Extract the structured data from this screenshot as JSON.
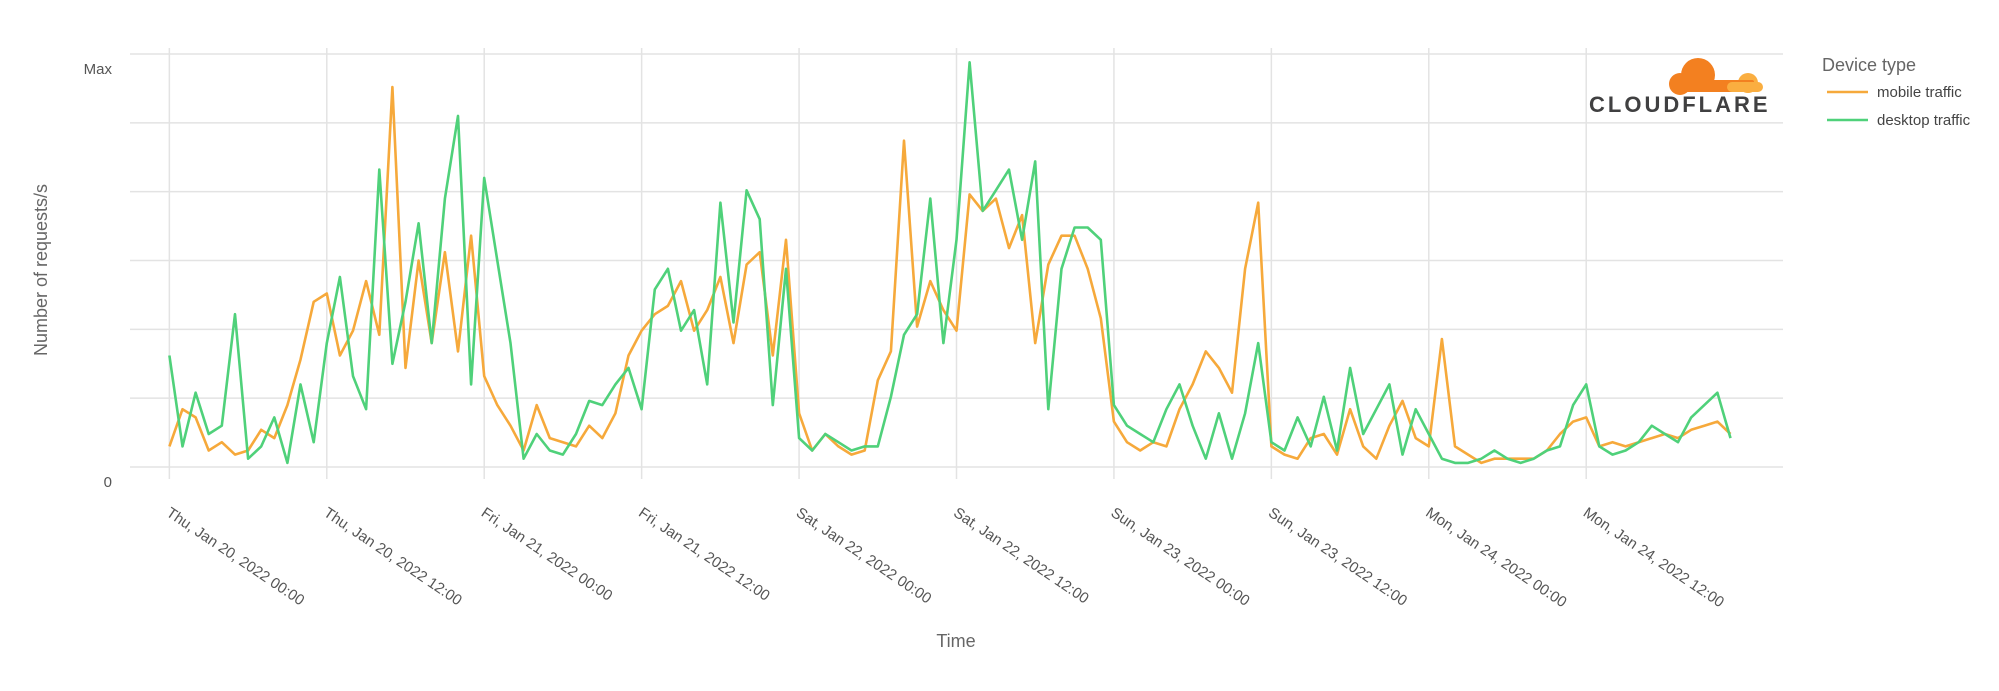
{
  "colors": {
    "mobile": "#f6a93b",
    "desktop": "#4fd17a",
    "grid": "#e3e3e3",
    "logo_orange": "#f38020",
    "logo_light": "#faae40"
  },
  "logo": {
    "text": "CLOUDFLARE",
    "icon": "cloudflare-cloud-icon"
  },
  "chart_data": {
    "type": "line",
    "xlabel": "Time",
    "ylabel": "Number of requests/s",
    "y_tick_labels": [
      "Max",
      "0"
    ],
    "ylim": [
      0,
      1
    ],
    "xlim": [
      "2022-01-19T21:00",
      "2022-01-25T03:00"
    ],
    "x_ticks": [
      {
        "x": "2022-01-20T00:00",
        "label": "Thu, Jan 20, 2022 00:00"
      },
      {
        "x": "2022-01-20T12:00",
        "label": "Thu, Jan 20, 2022 12:00"
      },
      {
        "x": "2022-01-21T00:00",
        "label": "Fri, Jan 21, 2022 00:00"
      },
      {
        "x": "2022-01-21T12:00",
        "label": "Fri, Jan 21, 2022 12:00"
      },
      {
        "x": "2022-01-22T00:00",
        "label": "Sat, Jan 22, 2022 00:00"
      },
      {
        "x": "2022-01-22T12:00",
        "label": "Sat, Jan 22, 2022 12:00"
      },
      {
        "x": "2022-01-23T00:00",
        "label": "Sun, Jan 23, 2022 00:00"
      },
      {
        "x": "2022-01-23T12:00",
        "label": "Sun, Jan 23, 2022 12:00"
      },
      {
        "x": "2022-01-24T00:00",
        "label": "Mon, Jan 24, 2022 00:00"
      },
      {
        "x": "2022-01-24T12:00",
        "label": "Mon, Jan 24, 2022 12:00"
      }
    ],
    "grid": true,
    "legend": {
      "title": "Device type",
      "position": "top-right"
    },
    "series": [
      {
        "name": "mobile traffic",
        "x": [
          "2022-01-20T00:00",
          "2022-01-20T01:00",
          "2022-01-20T02:00",
          "2022-01-20T03:00",
          "2022-01-20T04:00",
          "2022-01-20T05:00",
          "2022-01-20T06:00",
          "2022-01-20T07:00",
          "2022-01-20T08:00",
          "2022-01-20T09:00",
          "2022-01-20T10:00",
          "2022-01-20T11:00",
          "2022-01-20T12:00",
          "2022-01-20T13:00",
          "2022-01-20T14:00",
          "2022-01-20T15:00",
          "2022-01-20T16:00",
          "2022-01-20T17:00",
          "2022-01-20T18:00",
          "2022-01-20T19:00",
          "2022-01-20T20:00",
          "2022-01-20T21:00",
          "2022-01-20T22:00",
          "2022-01-20T23:00",
          "2022-01-21T00:00",
          "2022-01-21T01:00",
          "2022-01-21T02:00",
          "2022-01-21T03:00",
          "2022-01-21T04:00",
          "2022-01-21T05:00",
          "2022-01-21T06:00",
          "2022-01-21T07:00",
          "2022-01-21T08:00",
          "2022-01-21T09:00",
          "2022-01-21T10:00",
          "2022-01-21T11:00",
          "2022-01-21T12:00",
          "2022-01-21T13:00",
          "2022-01-21T14:00",
          "2022-01-21T15:00",
          "2022-01-21T16:00",
          "2022-01-21T17:00",
          "2022-01-21T18:00",
          "2022-01-21T19:00",
          "2022-01-21T20:00",
          "2022-01-21T21:00",
          "2022-01-21T22:00",
          "2022-01-21T23:00",
          "2022-01-22T00:00",
          "2022-01-22T01:00",
          "2022-01-22T02:00",
          "2022-01-22T03:00",
          "2022-01-22T04:00",
          "2022-01-22T05:00",
          "2022-01-22T06:00",
          "2022-01-22T07:00",
          "2022-01-22T08:00",
          "2022-01-22T09:00",
          "2022-01-22T10:00",
          "2022-01-22T11:00",
          "2022-01-22T12:00",
          "2022-01-22T13:00",
          "2022-01-22T14:00",
          "2022-01-22T15:00",
          "2022-01-22T16:00",
          "2022-01-22T17:00",
          "2022-01-22T18:00",
          "2022-01-22T19:00",
          "2022-01-22T20:00",
          "2022-01-22T21:00",
          "2022-01-22T22:00",
          "2022-01-22T23:00",
          "2022-01-23T00:00",
          "2022-01-23T01:00",
          "2022-01-23T02:00",
          "2022-01-23T03:00",
          "2022-01-23T04:00",
          "2022-01-23T05:00",
          "2022-01-23T06:00",
          "2022-01-23T07:00",
          "2022-01-23T08:00",
          "2022-01-23T09:00",
          "2022-01-23T10:00",
          "2022-01-23T11:00",
          "2022-01-23T12:00",
          "2022-01-23T13:00",
          "2022-01-23T14:00",
          "2022-01-23T15:00",
          "2022-01-23T16:00",
          "2022-01-23T17:00",
          "2022-01-23T18:00",
          "2022-01-23T19:00",
          "2022-01-23T20:00",
          "2022-01-23T21:00",
          "2022-01-23T22:00",
          "2022-01-23T23:00",
          "2022-01-24T00:00",
          "2022-01-24T01:00",
          "2022-01-24T02:00",
          "2022-01-24T03:00",
          "2022-01-24T04:00",
          "2022-01-24T05:00",
          "2022-01-24T06:00",
          "2022-01-24T07:00",
          "2022-01-24T08:00",
          "2022-01-24T09:00",
          "2022-01-24T10:00",
          "2022-01-24T11:00",
          "2022-01-24T12:00",
          "2022-01-24T13:00",
          "2022-01-24T14:00",
          "2022-01-24T15:00",
          "2022-01-24T16:00",
          "2022-01-24T17:00",
          "2022-01-24T18:00",
          "2022-01-24T19:00",
          "2022-01-24T20:00",
          "2022-01-24T21:00",
          "2022-01-24T22:00",
          "2022-01-24T23:00"
        ],
        "values": [
          0.05,
          0.14,
          0.12,
          0.04,
          0.06,
          0.03,
          0.04,
          0.09,
          0.07,
          0.15,
          0.26,
          0.4,
          0.42,
          0.27,
          0.33,
          0.45,
          0.32,
          0.92,
          0.24,
          0.5,
          0.3,
          0.52,
          0.28,
          0.56,
          0.22,
          0.15,
          0.1,
          0.04,
          0.15,
          0.07,
          0.06,
          0.05,
          0.1,
          0.07,
          0.13,
          0.27,
          0.33,
          0.37,
          0.39,
          0.45,
          0.33,
          0.38,
          0.46,
          0.3,
          0.49,
          0.52,
          0.27,
          0.55,
          0.13,
          0.04,
          0.08,
          0.05,
          0.03,
          0.04,
          0.21,
          0.28,
          0.79,
          0.34,
          0.45,
          0.38,
          0.33,
          0.66,
          0.62,
          0.65,
          0.53,
          0.61,
          0.3,
          0.49,
          0.56,
          0.56,
          0.48,
          0.36,
          0.11,
          0.06,
          0.04,
          0.06,
          0.05,
          0.14,
          0.2,
          0.28,
          0.24,
          0.18,
          0.48,
          0.64,
          0.05,
          0.03,
          0.02,
          0.07,
          0.08,
          0.03,
          0.14,
          0.05,
          0.02,
          0.1,
          0.16,
          0.07,
          0.05,
          0.31,
          0.05,
          0.03,
          0.01,
          0.02,
          0.02,
          0.02,
          0.02,
          0.04,
          0.08,
          0.11,
          0.12,
          0.05,
          0.06,
          0.05,
          0.06,
          0.07,
          0.08,
          0.07,
          0.09,
          0.1,
          0.11,
          0.08
        ]
      },
      {
        "name": "desktop traffic",
        "x": [
          "2022-01-20T00:00",
          "2022-01-20T01:00",
          "2022-01-20T02:00",
          "2022-01-20T03:00",
          "2022-01-20T04:00",
          "2022-01-20T05:00",
          "2022-01-20T06:00",
          "2022-01-20T07:00",
          "2022-01-20T08:00",
          "2022-01-20T09:00",
          "2022-01-20T10:00",
          "2022-01-20T11:00",
          "2022-01-20T12:00",
          "2022-01-20T13:00",
          "2022-01-20T14:00",
          "2022-01-20T15:00",
          "2022-01-20T16:00",
          "2022-01-20T17:00",
          "2022-01-20T18:00",
          "2022-01-20T19:00",
          "2022-01-20T20:00",
          "2022-01-20T21:00",
          "2022-01-20T22:00",
          "2022-01-20T23:00",
          "2022-01-21T00:00",
          "2022-01-21T01:00",
          "2022-01-21T02:00",
          "2022-01-21T03:00",
          "2022-01-21T04:00",
          "2022-01-21T05:00",
          "2022-01-21T06:00",
          "2022-01-21T07:00",
          "2022-01-21T08:00",
          "2022-01-21T09:00",
          "2022-01-21T10:00",
          "2022-01-21T11:00",
          "2022-01-21T12:00",
          "2022-01-21T13:00",
          "2022-01-21T14:00",
          "2022-01-21T15:00",
          "2022-01-21T16:00",
          "2022-01-21T17:00",
          "2022-01-21T18:00",
          "2022-01-21T19:00",
          "2022-01-21T20:00",
          "2022-01-21T21:00",
          "2022-01-21T22:00",
          "2022-01-21T23:00",
          "2022-01-22T00:00",
          "2022-01-22T01:00",
          "2022-01-22T02:00",
          "2022-01-22T03:00",
          "2022-01-22T04:00",
          "2022-01-22T05:00",
          "2022-01-22T06:00",
          "2022-01-22T07:00",
          "2022-01-22T08:00",
          "2022-01-22T09:00",
          "2022-01-22T10:00",
          "2022-01-22T11:00",
          "2022-01-22T12:00",
          "2022-01-22T13:00",
          "2022-01-22T14:00",
          "2022-01-22T15:00",
          "2022-01-22T16:00",
          "2022-01-22T17:00",
          "2022-01-22T18:00",
          "2022-01-22T19:00",
          "2022-01-22T20:00",
          "2022-01-22T21:00",
          "2022-01-22T22:00",
          "2022-01-22T23:00",
          "2022-01-23T00:00",
          "2022-01-23T01:00",
          "2022-01-23T02:00",
          "2022-01-23T03:00",
          "2022-01-23T04:00",
          "2022-01-23T05:00",
          "2022-01-23T06:00",
          "2022-01-23T07:00",
          "2022-01-23T08:00",
          "2022-01-23T09:00",
          "2022-01-23T10:00",
          "2022-01-23T11:00",
          "2022-01-23T12:00",
          "2022-01-23T13:00",
          "2022-01-23T14:00",
          "2022-01-23T15:00",
          "2022-01-23T16:00",
          "2022-01-23T17:00",
          "2022-01-23T18:00",
          "2022-01-23T19:00",
          "2022-01-23T20:00",
          "2022-01-23T21:00",
          "2022-01-23T22:00",
          "2022-01-23T23:00",
          "2022-01-24T00:00",
          "2022-01-24T01:00",
          "2022-01-24T02:00",
          "2022-01-24T03:00",
          "2022-01-24T04:00",
          "2022-01-24T05:00",
          "2022-01-24T06:00",
          "2022-01-24T07:00",
          "2022-01-24T08:00",
          "2022-01-24T09:00",
          "2022-01-24T10:00",
          "2022-01-24T11:00",
          "2022-01-24T12:00",
          "2022-01-24T13:00",
          "2022-01-24T14:00",
          "2022-01-24T15:00",
          "2022-01-24T16:00",
          "2022-01-24T17:00",
          "2022-01-24T18:00",
          "2022-01-24T19:00",
          "2022-01-24T20:00",
          "2022-01-24T21:00",
          "2022-01-24T22:00",
          "2022-01-24T23:00"
        ],
        "values": [
          0.27,
          0.05,
          0.18,
          0.08,
          0.1,
          0.37,
          0.02,
          0.05,
          0.12,
          0.01,
          0.2,
          0.06,
          0.3,
          0.46,
          0.22,
          0.14,
          0.72,
          0.25,
          0.4,
          0.59,
          0.3,
          0.65,
          0.85,
          0.2,
          0.7,
          0.5,
          0.3,
          0.02,
          0.08,
          0.04,
          0.03,
          0.08,
          0.16,
          0.15,
          0.2,
          0.24,
          0.14,
          0.43,
          0.48,
          0.33,
          0.38,
          0.2,
          0.64,
          0.35,
          0.67,
          0.6,
          0.15,
          0.48,
          0.07,
          0.04,
          0.08,
          0.06,
          0.04,
          0.05,
          0.05,
          0.17,
          0.32,
          0.37,
          0.65,
          0.3,
          0.55,
          0.98,
          0.62,
          0.67,
          0.72,
          0.55,
          0.74,
          0.14,
          0.48,
          0.58,
          0.58,
          0.55,
          0.15,
          0.1,
          0.08,
          0.06,
          0.14,
          0.2,
          0.1,
          0.02,
          0.13,
          0.02,
          0.13,
          0.3,
          0.06,
          0.04,
          0.12,
          0.05,
          0.17,
          0.04,
          0.24,
          0.08,
          0.14,
          0.2,
          0.03,
          0.14,
          0.08,
          0.02,
          0.01,
          0.01,
          0.02,
          0.04,
          0.02,
          0.01,
          0.02,
          0.04,
          0.05,
          0.15,
          0.2,
          0.05,
          0.03,
          0.04,
          0.06,
          0.1,
          0.08,
          0.06,
          0.12,
          0.15,
          0.18,
          0.07
        ]
      }
    ]
  }
}
